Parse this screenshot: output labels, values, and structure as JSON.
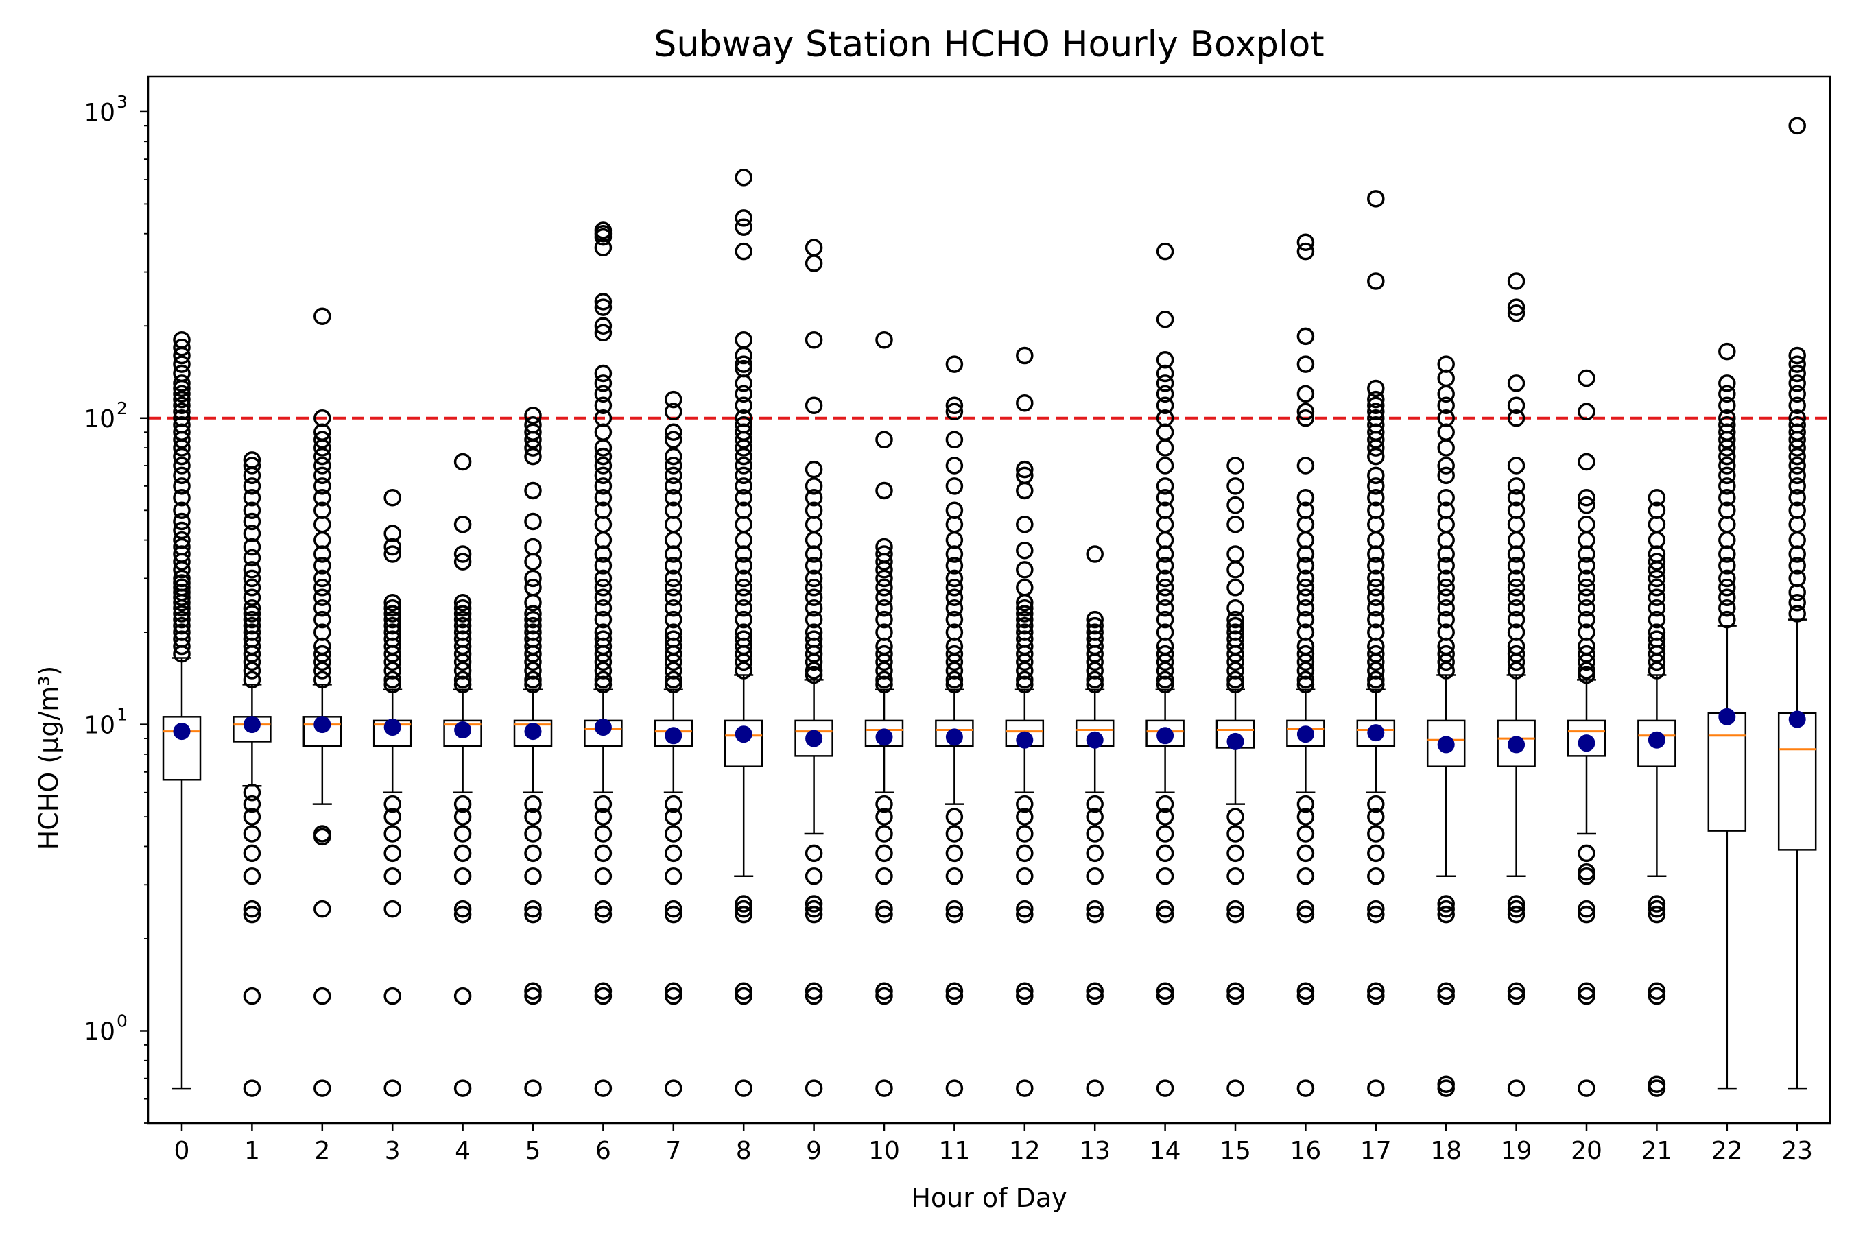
{
  "chart_data": {
    "type": "boxplot",
    "title": "Subway Station HCHO Hourly Boxplot",
    "xlabel": "Hour of Day",
    "ylabel": "HCHO (μg/m³)",
    "yscale": "log",
    "ylim": [
      0.5,
      1300
    ],
    "y_ticks": [
      {
        "value": 1,
        "base": "10",
        "exp": "0"
      },
      {
        "value": 10,
        "base": "10",
        "exp": "1"
      },
      {
        "value": 100,
        "base": "10",
        "exp": "2"
      },
      {
        "value": 1000,
        "base": "10",
        "exp": "3"
      }
    ],
    "reference_line": {
      "value": 100,
      "color": "#e31a1c",
      "style": "dashed"
    },
    "colors": {
      "median": "#ff7f0e",
      "mean": "#00008b",
      "box": "#000000"
    },
    "grid": false,
    "categories": [
      "0",
      "1",
      "2",
      "3",
      "4",
      "5",
      "6",
      "7",
      "8",
      "9",
      "10",
      "11",
      "12",
      "13",
      "14",
      "15",
      "16",
      "17",
      "18",
      "19",
      "20",
      "21",
      "22",
      "23"
    ],
    "boxes": [
      {
        "hour": "0",
        "whislo": 0.65,
        "q1": 6.6,
        "median": 9.5,
        "q3": 10.6,
        "whishi": 16.5,
        "mean": 9.5,
        "fliers": [
          17,
          18,
          19,
          20,
          21,
          22,
          23,
          24,
          25,
          26,
          27,
          28,
          29,
          30,
          32,
          34,
          36,
          38,
          40,
          43,
          46,
          50,
          55,
          60,
          65,
          70,
          75,
          80,
          85,
          90,
          95,
          100,
          105,
          110,
          115,
          120,
          125,
          130,
          140,
          150,
          160,
          170,
          180
        ]
      },
      {
        "hour": "1",
        "whislo": 6.3,
        "q1": 8.8,
        "median": 10.0,
        "q3": 10.6,
        "whishi": 13.5,
        "mean": 10.0,
        "fliers": [
          0.65,
          1.3,
          2.4,
          2.5,
          3.2,
          3.8,
          4.4,
          5.0,
          5.5,
          6.0,
          14,
          15,
          16,
          17,
          18,
          19,
          20,
          21,
          22,
          23,
          24,
          26,
          28,
          30,
          32,
          35,
          38,
          42,
          46,
          50,
          55,
          60,
          65,
          70,
          73
        ]
      },
      {
        "hour": "2",
        "whislo": 5.5,
        "q1": 8.5,
        "median": 10.0,
        "q3": 10.6,
        "whishi": 13.5,
        "mean": 10.0,
        "fliers": [
          0.65,
          1.3,
          2.5,
          4.3,
          4.4,
          14,
          15,
          16,
          17,
          18,
          20,
          22,
          24,
          26,
          28,
          30,
          33,
          36,
          40,
          45,
          50,
          55,
          60,
          65,
          70,
          75,
          80,
          85,
          90,
          100,
          215
        ]
      },
      {
        "hour": "3",
        "whislo": 6.0,
        "q1": 8.5,
        "median": 10.0,
        "q3": 10.3,
        "whishi": 13.0,
        "mean": 9.8,
        "fliers": [
          0.65,
          1.3,
          2.5,
          3.2,
          3.8,
          4.4,
          5.0,
          5.5,
          13.5,
          14,
          15,
          16,
          17,
          18,
          19,
          20,
          21,
          22,
          23,
          24,
          25,
          36,
          38,
          42,
          55
        ]
      },
      {
        "hour": "4",
        "whislo": 6.0,
        "q1": 8.5,
        "median": 10.0,
        "q3": 10.3,
        "whishi": 13.0,
        "mean": 9.6,
        "fliers": [
          0.65,
          1.3,
          2.4,
          2.5,
          3.2,
          3.8,
          4.4,
          5.0,
          5.5,
          13.5,
          14,
          15,
          16,
          17,
          18,
          19,
          20,
          21,
          22,
          23,
          24,
          25,
          34,
          36,
          45,
          72
        ]
      },
      {
        "hour": "5",
        "whislo": 6.0,
        "q1": 8.5,
        "median": 10.0,
        "q3": 10.3,
        "whishi": 13.0,
        "mean": 9.5,
        "fliers": [
          0.65,
          1.3,
          1.35,
          2.4,
          2.5,
          3.2,
          3.8,
          4.4,
          5.0,
          5.5,
          13.5,
          14,
          15,
          16,
          17,
          18,
          19,
          20,
          21,
          22,
          23,
          25,
          28,
          30,
          34,
          38,
          46,
          58,
          75,
          80,
          85,
          90,
          95,
          102
        ]
      },
      {
        "hour": "6",
        "whislo": 6.0,
        "q1": 8.5,
        "median": 9.7,
        "q3": 10.3,
        "whishi": 13.0,
        "mean": 9.8,
        "fliers": [
          0.65,
          1.3,
          1.35,
          2.4,
          2.5,
          3.2,
          3.8,
          4.4,
          5.0,
          5.5,
          13.5,
          14,
          15,
          16,
          17,
          18,
          19,
          20,
          22,
          24,
          26,
          28,
          30,
          33,
          36,
          40,
          45,
          50,
          55,
          60,
          65,
          70,
          75,
          80,
          90,
          100,
          110,
          120,
          130,
          140,
          190,
          200,
          230,
          240,
          360,
          390,
          400,
          410
        ]
      },
      {
        "hour": "7",
        "whislo": 6.0,
        "q1": 8.5,
        "median": 9.5,
        "q3": 10.3,
        "whishi": 13.0,
        "mean": 9.2,
        "fliers": [
          0.65,
          1.3,
          1.35,
          2.4,
          2.5,
          3.2,
          3.8,
          4.4,
          5.0,
          5.5,
          13.5,
          14,
          15,
          16,
          17,
          18,
          19,
          20,
          22,
          24,
          26,
          28,
          30,
          33,
          36,
          40,
          45,
          50,
          55,
          60,
          65,
          70,
          75,
          85,
          90,
          105,
          115
        ]
      },
      {
        "hour": "8",
        "whislo": 3.2,
        "q1": 7.3,
        "median": 9.2,
        "q3": 10.3,
        "whishi": 14.5,
        "mean": 9.3,
        "fliers": [
          0.65,
          1.3,
          1.35,
          2.4,
          2.5,
          2.6,
          15,
          16,
          17,
          18,
          19,
          20,
          22,
          24,
          26,
          28,
          30,
          33,
          36,
          40,
          45,
          50,
          55,
          60,
          65,
          70,
          75,
          80,
          85,
          90,
          95,
          100,
          110,
          120,
          130,
          145,
          150,
          160,
          180,
          350,
          420,
          450,
          610
        ]
      },
      {
        "hour": "9",
        "whislo": 4.4,
        "q1": 7.9,
        "median": 9.5,
        "q3": 10.3,
        "whishi": 14.0,
        "mean": 9.0,
        "fliers": [
          0.65,
          1.3,
          1.35,
          2.4,
          2.5,
          2.6,
          3.2,
          3.8,
          14.5,
          15,
          16,
          17,
          18,
          19,
          20,
          22,
          24,
          26,
          28,
          30,
          33,
          36,
          40,
          45,
          50,
          55,
          60,
          68,
          110,
          180,
          320,
          360
        ]
      },
      {
        "hour": "10",
        "whislo": 6.0,
        "q1": 8.5,
        "median": 9.6,
        "q3": 10.3,
        "whishi": 13.0,
        "mean": 9.1,
        "fliers": [
          0.65,
          1.3,
          1.35,
          2.4,
          2.5,
          3.2,
          3.8,
          4.4,
          5.0,
          5.5,
          13.5,
          14,
          15,
          16,
          17,
          18,
          20,
          22,
          24,
          26,
          28,
          30,
          32,
          34,
          36,
          38,
          58,
          85,
          180
        ]
      },
      {
        "hour": "11",
        "whislo": 5.5,
        "q1": 8.5,
        "median": 9.6,
        "q3": 10.3,
        "whishi": 13.0,
        "mean": 9.1,
        "fliers": [
          0.65,
          1.3,
          1.35,
          2.4,
          2.5,
          3.2,
          3.8,
          4.4,
          5.0,
          13.5,
          14,
          15,
          16,
          17,
          18,
          20,
          22,
          24,
          26,
          28,
          30,
          33,
          36,
          40,
          45,
          50,
          60,
          70,
          85,
          105,
          110,
          150
        ]
      },
      {
        "hour": "12",
        "whislo": 6.0,
        "q1": 8.5,
        "median": 9.5,
        "q3": 10.3,
        "whishi": 13.0,
        "mean": 8.9,
        "fliers": [
          0.65,
          1.3,
          1.35,
          2.4,
          2.5,
          3.2,
          3.8,
          4.4,
          5.0,
          5.5,
          13.5,
          14,
          15,
          16,
          17,
          18,
          19,
          20,
          21,
          22,
          23,
          24,
          25,
          28,
          32,
          37,
          45,
          58,
          65,
          68,
          112,
          160
        ]
      },
      {
        "hour": "13",
        "whislo": 6.0,
        "q1": 8.5,
        "median": 9.6,
        "q3": 10.3,
        "whishi": 13.0,
        "mean": 8.9,
        "fliers": [
          0.65,
          1.3,
          1.35,
          2.4,
          2.5,
          3.2,
          3.8,
          4.4,
          5.0,
          5.5,
          13.5,
          14,
          15,
          16,
          17,
          18,
          19,
          20,
          21,
          22,
          36
        ]
      },
      {
        "hour": "14",
        "whislo": 6.0,
        "q1": 8.5,
        "median": 9.5,
        "q3": 10.3,
        "whishi": 13.0,
        "mean": 9.2,
        "fliers": [
          0.65,
          1.3,
          1.35,
          2.4,
          2.5,
          3.2,
          3.8,
          4.4,
          5.0,
          5.5,
          13.5,
          14,
          15,
          16,
          17,
          18,
          20,
          22,
          24,
          26,
          28,
          30,
          33,
          36,
          40,
          45,
          50,
          55,
          60,
          70,
          80,
          90,
          100,
          110,
          120,
          130,
          140,
          155,
          210,
          350
        ]
      },
      {
        "hour": "15",
        "whislo": 5.5,
        "q1": 8.4,
        "median": 9.6,
        "q3": 10.3,
        "whishi": 13.0,
        "mean": 8.8,
        "fliers": [
          0.65,
          1.3,
          1.35,
          2.4,
          2.5,
          3.2,
          3.8,
          4.4,
          5.0,
          13.5,
          14,
          15,
          16,
          17,
          18,
          19,
          20,
          21,
          22,
          24,
          28,
          32,
          36,
          45,
          52,
          60,
          70
        ]
      },
      {
        "hour": "16",
        "whislo": 6.0,
        "q1": 8.5,
        "median": 9.7,
        "q3": 10.3,
        "whishi": 13.0,
        "mean": 9.3,
        "fliers": [
          0.65,
          1.3,
          1.35,
          2.4,
          2.5,
          3.2,
          3.8,
          4.4,
          5.0,
          5.5,
          13.5,
          14,
          15,
          16,
          17,
          18,
          20,
          22,
          24,
          26,
          28,
          30,
          33,
          36,
          40,
          45,
          50,
          55,
          70,
          100,
          105,
          120,
          150,
          185,
          350,
          375
        ]
      },
      {
        "hour": "17",
        "whislo": 6.0,
        "q1": 8.5,
        "median": 9.6,
        "q3": 10.3,
        "whishi": 13.0,
        "mean": 9.4,
        "fliers": [
          0.65,
          1.3,
          1.35,
          2.4,
          2.5,
          3.2,
          3.8,
          4.4,
          5.0,
          5.5,
          13.5,
          14,
          15,
          16,
          17,
          18,
          20,
          22,
          24,
          26,
          28,
          30,
          33,
          36,
          40,
          45,
          50,
          55,
          60,
          65,
          75,
          80,
          85,
          90,
          95,
          100,
          105,
          110,
          115,
          125,
          280,
          520
        ]
      },
      {
        "hour": "18",
        "whislo": 3.2,
        "q1": 7.3,
        "median": 8.9,
        "q3": 10.3,
        "whishi": 14.5,
        "mean": 8.6,
        "fliers": [
          0.65,
          0.67,
          1.3,
          1.35,
          2.4,
          2.5,
          2.6,
          15,
          16,
          17,
          18,
          20,
          22,
          24,
          26,
          28,
          30,
          33,
          36,
          40,
          45,
          50,
          55,
          65,
          70,
          80,
          90,
          100,
          110,
          120,
          135,
          150
        ]
      },
      {
        "hour": "19",
        "whislo": 3.2,
        "q1": 7.3,
        "median": 9.0,
        "q3": 10.3,
        "whishi": 14.5,
        "mean": 8.6,
        "fliers": [
          0.65,
          1.3,
          1.35,
          2.4,
          2.5,
          2.6,
          15,
          16,
          17,
          18,
          20,
          22,
          24,
          26,
          28,
          30,
          33,
          36,
          40,
          45,
          50,
          55,
          60,
          70,
          100,
          110,
          130,
          220,
          230,
          280
        ]
      },
      {
        "hour": "20",
        "whislo": 4.4,
        "q1": 7.9,
        "median": 9.5,
        "q3": 10.3,
        "whishi": 14.0,
        "mean": 8.7,
        "fliers": [
          0.65,
          1.3,
          1.35,
          2.4,
          2.5,
          3.2,
          3.3,
          3.8,
          14.5,
          15,
          16,
          17,
          18,
          20,
          22,
          24,
          26,
          28,
          30,
          33,
          36,
          40,
          45,
          52,
          55,
          72,
          105,
          135
        ]
      },
      {
        "hour": "21",
        "whislo": 3.2,
        "q1": 7.3,
        "median": 9.2,
        "q3": 10.3,
        "whishi": 14.5,
        "mean": 8.9,
        "fliers": [
          0.65,
          0.67,
          1.3,
          1.35,
          2.4,
          2.5,
          2.6,
          15,
          16,
          17,
          18,
          19,
          20,
          22,
          24,
          26,
          28,
          30,
          32,
          34,
          36,
          40,
          45,
          50,
          55
        ]
      },
      {
        "hour": "22",
        "whislo": 0.65,
        "q1": 4.5,
        "median": 9.2,
        "q3": 10.9,
        "whishi": 21.0,
        "mean": 10.6,
        "fliers": [
          22,
          24,
          26,
          28,
          30,
          33,
          36,
          40,
          45,
          50,
          55,
          60,
          65,
          70,
          75,
          80,
          85,
          90,
          95,
          100,
          110,
          120,
          130,
          165
        ]
      },
      {
        "hour": "23",
        "whislo": 0.65,
        "q1": 3.9,
        "median": 8.3,
        "q3": 10.9,
        "whishi": 22.0,
        "mean": 10.4,
        "fliers": [
          23,
          25,
          27,
          30,
          33,
          36,
          40,
          45,
          50,
          55,
          60,
          65,
          70,
          75,
          80,
          85,
          90,
          95,
          100,
          110,
          120,
          130,
          140,
          150,
          160,
          900
        ]
      }
    ]
  }
}
